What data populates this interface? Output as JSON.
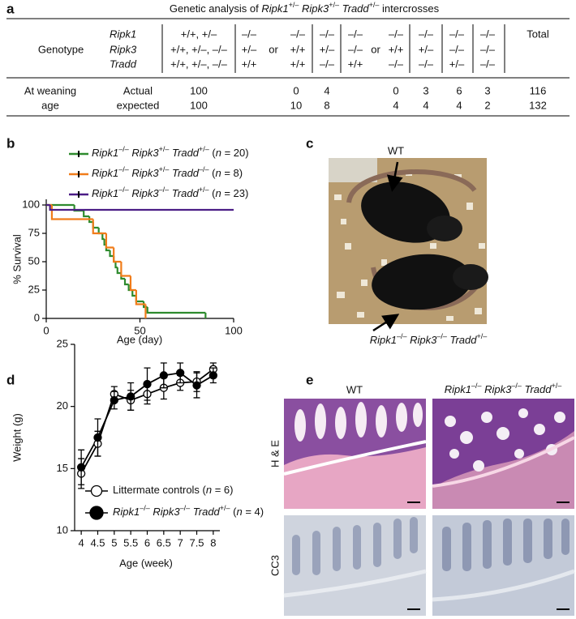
{
  "panel_labels": [
    "a",
    "b",
    "c",
    "d",
    "e"
  ],
  "table": {
    "title": [
      "Genetic analysis of",
      "Ripk1",
      "+/–",
      "Ripk3",
      "+/–",
      "Tradd",
      "+/–",
      "intercrosses"
    ],
    "genotype_label": "Genotype",
    "genes": [
      "Ripk1",
      "Ripk3",
      "Tradd"
    ],
    "genotypes": [
      [
        [
          "+/+, +/–"
        ],
        [
          "+/+, +/–, –/–"
        ],
        [
          "+/+, +/–, –/–"
        ]
      ],
      [
        [
          "–/–",
          "–/–"
        ],
        [
          "+/–",
          "or",
          "+/+"
        ],
        [
          "+/+",
          "+/+"
        ]
      ],
      [
        [
          "–/–"
        ],
        [
          "+/–"
        ],
        [
          "–/–"
        ]
      ],
      [
        [
          "–/–",
          "–/–"
        ],
        [
          "–/–",
          "or",
          "+/+"
        ],
        [
          "+/+",
          "–/–"
        ]
      ],
      [
        [
          "–/–"
        ],
        [
          "+/–"
        ],
        [
          "–/–"
        ]
      ],
      [
        [
          "–/–"
        ],
        [
          "–/–"
        ],
        [
          "+/–"
        ]
      ],
      [
        [
          "–/–"
        ],
        [
          "–/–"
        ],
        [
          "–/–"
        ]
      ]
    ],
    "total_label": "Total",
    "group_label": [
      "At weaning",
      "age"
    ],
    "rows": [
      {
        "label": "Actual",
        "values": [
          100,
          0,
          4,
          0,
          3,
          6,
          3,
          116
        ]
      },
      {
        "label": "expected",
        "values": [
          100,
          10,
          8,
          4,
          4,
          4,
          2,
          132
        ]
      }
    ]
  },
  "chart_data": [
    {
      "type": "step",
      "xlabel": "Age (day)",
      "ylabel": "% Survival",
      "xlim": [
        0,
        100
      ],
      "xticks": [
        0,
        50,
        100
      ],
      "ylim": [
        0,
        105
      ],
      "yticks": [
        0,
        25,
        50,
        75,
        100
      ],
      "series": [
        {
          "name": "Ripk1–/– Ripk3+/– Tradd+/– (n = 20)",
          "color": "#2e8b2e",
          "x": [
            0,
            15,
            20,
            23,
            25,
            28,
            30,
            31,
            32,
            34,
            36,
            37,
            38,
            40,
            42,
            44,
            46,
            48,
            52,
            54,
            85
          ],
          "values": [
            100,
            95,
            90,
            85,
            80,
            75,
            70,
            65,
            60,
            55,
            50,
            45,
            40,
            35,
            30,
            25,
            20,
            15,
            10,
            5,
            0
          ]
        },
        {
          "name": "Ripk1–/– Ripk3+/– Tradd–/– (n = 8)",
          "color": "#f07c1a",
          "x": [
            0,
            3,
            25,
            32,
            36,
            40,
            45,
            48,
            53
          ],
          "values": [
            100,
            87.5,
            75,
            62.5,
            50,
            37.5,
            25,
            12.5,
            0
          ]
        },
        {
          "name": "Ripk1–/– Ripk3–/– Tradd+/– (n = 23)",
          "color": "#4b1d86",
          "x": [
            0,
            2,
            100
          ],
          "values": [
            100,
            95.7,
            95.7
          ]
        }
      ]
    },
    {
      "type": "line",
      "xlabel": "Age (week)",
      "ylabel": "Weight (g)",
      "x": [
        4,
        4.5,
        5,
        5.5,
        6,
        6.5,
        7,
        7.5,
        8
      ],
      "xlim": [
        3.8,
        8.2
      ],
      "xticks": [
        4,
        4.5,
        5,
        5.5,
        6,
        6.5,
        7,
        7.5,
        8
      ],
      "ylim": [
        10,
        25
      ],
      "yticks": [
        10,
        15,
        20,
        25
      ],
      "series": [
        {
          "name": "Littermate controls (n = 6)",
          "color": "#000000",
          "marker": "open",
          "values": [
            14.6,
            17.0,
            21.0,
            20.5,
            21.0,
            21.5,
            21.9,
            22.0,
            23.0
          ],
          "errors": [
            1.2,
            1.0,
            0.6,
            0.8,
            0.8,
            0.9,
            0.6,
            0.8,
            0.5
          ]
        },
        {
          "name": "Ripk1–/– Ripk3–/– Tradd+/– (n = 4)",
          "color": "#000000",
          "marker": "filled",
          "values": [
            15.1,
            17.5,
            20.5,
            20.8,
            21.8,
            22.5,
            22.7,
            21.7,
            22.5
          ],
          "errors": [
            1.4,
            1.5,
            0.7,
            1.1,
            1.3,
            1.0,
            0.8,
            1.0,
            0.6
          ]
        }
      ]
    }
  ],
  "photo": {
    "wt_label": "WT",
    "mutant_label": "Ripk1–/– Ripk3–/– Tradd+/–"
  },
  "histology": {
    "columns": [
      "WT",
      "Ripk1–/– Ripk3–/– Tradd+/–"
    ],
    "rows": [
      "H & E",
      "CC3"
    ]
  }
}
